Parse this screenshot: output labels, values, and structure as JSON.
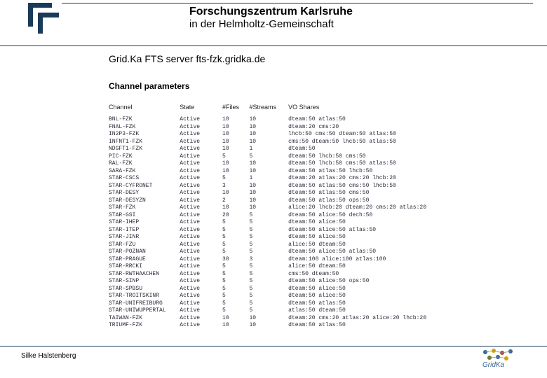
{
  "header": {
    "line1": "Forschungszentrum Karlsruhe",
    "line2": "in der Helmholtz-Gemeinschaft"
  },
  "page_title": "Grid.Ka FTS server fts-fzk.gridka.de",
  "section_title": "Channel parameters",
  "table": {
    "headers": {
      "channel": "Channel",
      "state": "State",
      "nfiles": "#Files",
      "nstreams": "#Streams",
      "voshares": "VO Shares"
    },
    "rows": [
      {
        "channel": "BNL-FZK",
        "state": "Active",
        "nfiles": "10",
        "nstreams": "10",
        "vo": "dteam:50 atlas:50"
      },
      {
        "channel": "FNAL-FZK",
        "state": "Active",
        "nfiles": "10",
        "nstreams": "10",
        "vo": "dteam:20 cms:20"
      },
      {
        "channel": "IN2P3-FZK",
        "state": "Active",
        "nfiles": "10",
        "nstreams": "10",
        "vo": "lhcb:50 cms:50 dteam:50 atlas:50"
      },
      {
        "channel": "INFNT1-FZK",
        "state": "Active",
        "nfiles": "10",
        "nstreams": "10",
        "vo": "cms:50 dteam:50 lhcb:50 atlas:50"
      },
      {
        "channel": "NDGFT1-FZK",
        "state": "Active",
        "nfiles": "10",
        "nstreams": "1",
        "vo": "dteam:50"
      },
      {
        "channel": "PIC-FZK",
        "state": "Active",
        "nfiles": "5",
        "nstreams": "5",
        "vo": "dteam:50 lhcb:50 cms:50"
      },
      {
        "channel": "RAL-FZK",
        "state": "Active",
        "nfiles": "10",
        "nstreams": "10",
        "vo": "dteam:50 lhcb:50 cms:50 atlas:50"
      },
      {
        "channel": "SARA-FZK",
        "state": "Active",
        "nfiles": "10",
        "nstreams": "10",
        "vo": "dteam:50 atlas:50 lhcb:50"
      },
      {
        "channel": "STAR-CSCS",
        "state": "Active",
        "nfiles": "5",
        "nstreams": "1",
        "vo": "dteam:20 atlas:20 cms:20 lhcb:20"
      },
      {
        "channel": "STAR-CYFRONET",
        "state": "Active",
        "nfiles": "3",
        "nstreams": "10",
        "vo": "dteam:50 atlas:50 cms:50 lhcb:50"
      },
      {
        "channel": "STAR-DESY",
        "state": "Active",
        "nfiles": "10",
        "nstreams": "10",
        "vo": "dteam:50 atlas:50 cms:50"
      },
      {
        "channel": "STAR-DESYZN",
        "state": "Active",
        "nfiles": "2",
        "nstreams": "10",
        "vo": "dteam:50 atlas:50 ops:50"
      },
      {
        "channel": "STAR-FZK",
        "state": "Active",
        "nfiles": "10",
        "nstreams": "10",
        "vo": "alice:20 lhcb:20 dteam:20 cms:20 atlas:20"
      },
      {
        "channel": "STAR-GSI",
        "state": "Active",
        "nfiles": "20",
        "nstreams": "5",
        "vo": "dteam:50 alice:50 dech:50"
      },
      {
        "channel": "STAR-IHEP",
        "state": "Active",
        "nfiles": "5",
        "nstreams": "5",
        "vo": "dteam:50 alice:50"
      },
      {
        "channel": "STAR-ITEP",
        "state": "Active",
        "nfiles": "5",
        "nstreams": "5",
        "vo": "dteam:50 alice:50 atlas:50"
      },
      {
        "channel": "STAR-JINR",
        "state": "Active",
        "nfiles": "5",
        "nstreams": "5",
        "vo": "dteam:50 alice:50"
      },
      {
        "channel": "STAR-FZU",
        "state": "Active",
        "nfiles": "5",
        "nstreams": "5",
        "vo": "alice:50 dteam:50"
      },
      {
        "channel": "STAR-POZNAN",
        "state": "Active",
        "nfiles": "5",
        "nstreams": "5",
        "vo": "dteam:50 alice:50 atlas:50"
      },
      {
        "channel": "STAR-PRAGUE",
        "state": "Active",
        "nfiles": "30",
        "nstreams": "3",
        "vo": "dteam:100 alice:100 atlas:100"
      },
      {
        "channel": "STAR-RRCKI",
        "state": "Active",
        "nfiles": "5",
        "nstreams": "5",
        "vo": "alice:50 dteam:50"
      },
      {
        "channel": "STAR-RWTHAACHEN",
        "state": "Active",
        "nfiles": "5",
        "nstreams": "5",
        "vo": "cms:50 dteam:50"
      },
      {
        "channel": "STAR-SINP",
        "state": "Active",
        "nfiles": "5",
        "nstreams": "5",
        "vo": "dteam:50 alice:50 ops:50"
      },
      {
        "channel": "STAR-SPBSU",
        "state": "Active",
        "nfiles": "5",
        "nstreams": "5",
        "vo": "dteam:50 alice:50"
      },
      {
        "channel": "STAR-TROITSKINR",
        "state": "Active",
        "nfiles": "5",
        "nstreams": "5",
        "vo": "dteam:50 alice:50"
      },
      {
        "channel": "STAR-UNIFREIBURG",
        "state": "Active",
        "nfiles": "5",
        "nstreams": "5",
        "vo": "dteam:50 atlas:50"
      },
      {
        "channel": "STAR-UNIWUPPERTAL",
        "state": "Active",
        "nfiles": "5",
        "nstreams": "5",
        "vo": "atlas:50 dteam:50"
      },
      {
        "channel": "TAIWAN-FZK",
        "state": "Active",
        "nfiles": "10",
        "nstreams": "10",
        "vo": "dteam:20 cms:20 atlas:20 alice:20 lhcb:20"
      },
      {
        "channel": "TRIUMF-FZK",
        "state": "Active",
        "nfiles": "10",
        "nstreams": "10",
        "vo": "dteam:50 atlas:50"
      }
    ]
  },
  "footer": {
    "author": "Silke Halstenberg",
    "logo_text": "GridKa"
  },
  "colors": {
    "rule": "#1a3a5a",
    "text": "#000000",
    "table_text": "#2a2a3a",
    "muted": "#777777",
    "logo_blue": "#3b6694",
    "logo_yellow": "#e0a000",
    "logo_red": "#c04030",
    "logo_olive": "#6b7a2b"
  }
}
